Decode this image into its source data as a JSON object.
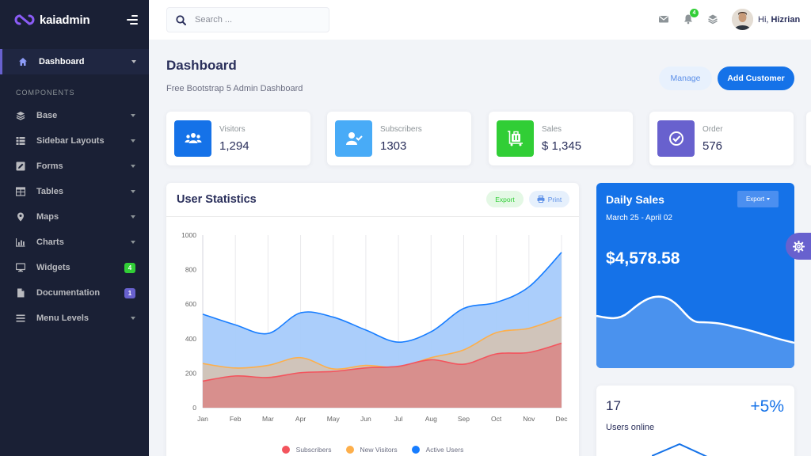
{
  "brand": {
    "name": "kaiadmin",
    "logo_color": "#8b5cf6"
  },
  "sidebar": {
    "active": {
      "label": "Dashboard",
      "icon": "home-icon"
    },
    "section_title": "COMPONENTS",
    "items": [
      {
        "label": "Base",
        "icon": "layers-icon"
      },
      {
        "label": "Sidebar Layouts",
        "icon": "th-list-icon"
      },
      {
        "label": "Forms",
        "icon": "pen-square-icon"
      },
      {
        "label": "Tables",
        "icon": "table-icon"
      },
      {
        "label": "Maps",
        "icon": "map-marker-icon"
      },
      {
        "label": "Charts",
        "icon": "bar-chart-icon"
      },
      {
        "label": "Widgets",
        "icon": "desktop-icon",
        "badge": "4",
        "badge_color": "#31ce36"
      },
      {
        "label": "Documentation",
        "icon": "file-icon",
        "badge": "1",
        "badge_color": "#6861ce"
      },
      {
        "label": "Menu Levels",
        "icon": "bars-icon"
      }
    ]
  },
  "header": {
    "search_placeholder": "Search ...",
    "notification_count": "4",
    "greeting": "Hi,",
    "user_name": "Hizrian"
  },
  "page": {
    "title": "Dashboard",
    "subtitle": "Free Bootstrap 5 Admin Dashboard",
    "manage_label": "Manage",
    "add_customer_label": "Add Customer"
  },
  "stats": [
    {
      "label": "Visitors",
      "value": "1,294",
      "icon": "users-icon",
      "color": "#1572e8"
    },
    {
      "label": "Subscribers",
      "value": "1303",
      "icon": "user-check-icon",
      "color": "#48abf7"
    },
    {
      "label": "Sales",
      "value": "$ 1,345",
      "icon": "luggage-cart-icon",
      "color": "#31ce36"
    },
    {
      "label": "Order",
      "value": "576",
      "icon": "check-circle-icon",
      "color": "#6861ce"
    }
  ],
  "user_statistics": {
    "title": "User Statistics",
    "export_label": "Export",
    "print_label": "Print"
  },
  "chart_data": {
    "type": "area",
    "categories": [
      "Jan",
      "Feb",
      "Mar",
      "Apr",
      "May",
      "Jun",
      "Jul",
      "Aug",
      "Sep",
      "Oct",
      "Nov",
      "Dec"
    ],
    "ylim": [
      0,
      1000
    ],
    "yticks": [
      0,
      200,
      400,
      600,
      800,
      1000
    ],
    "grid": "vertical",
    "legend": "bottom",
    "series": [
      {
        "name": "Active Users",
        "color": "#177dff",
        "fill": "#a6cbfb",
        "values": [
          542,
          480,
          430,
          550,
          525,
          450,
          380,
          440,
          575,
          610,
          700,
          900
        ]
      },
      {
        "name": "New Visitors",
        "color": "#fdaf4b",
        "fill": "#d2c3b6",
        "values": [
          256,
          230,
          245,
          290,
          225,
          245,
          235,
          290,
          335,
          435,
          460,
          525
        ]
      },
      {
        "name": "Subscribers",
        "color": "#f3545d",
        "fill": "#d88c8a",
        "values": [
          154,
          184,
          175,
          203,
          210,
          231,
          240,
          278,
          252,
          312,
          320,
          374
        ]
      }
    ],
    "legend_order": [
      "Subscribers",
      "New Visitors",
      "Active Users"
    ]
  },
  "daily_sales": {
    "title": "Daily Sales",
    "date_range": "March 25 - April 02",
    "amount": "$4,578.58",
    "export_label": "Export"
  },
  "users_online": {
    "count": "17",
    "change": "+5%",
    "label": "Users online"
  }
}
